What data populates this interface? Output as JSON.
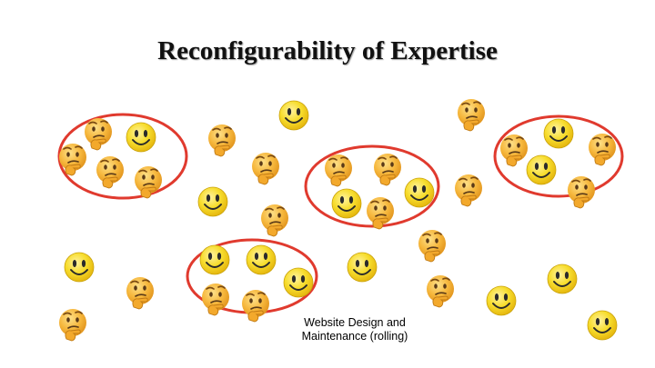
{
  "slide": {
    "title": "Reconfigurability of Expertise",
    "caption_line1": "Website Design and",
    "caption_line2": "Maintenance (rolling)"
  },
  "colors": {
    "background": "#ffffff",
    "group_outline": "#e03a2e",
    "smiley_face": "#f7dd2d",
    "thinking_face": "#f6b73c"
  },
  "icons": {
    "smiley": "smiley-face-icon",
    "thinking": "thinking-face-icon"
  }
}
